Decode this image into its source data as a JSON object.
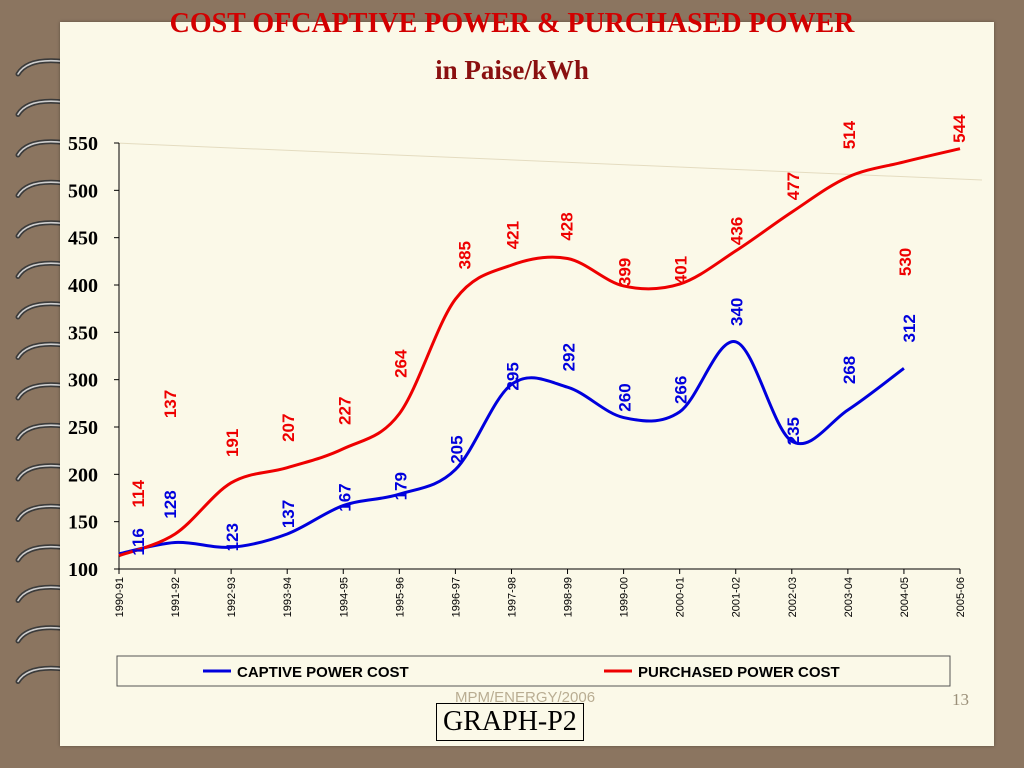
{
  "slide": {
    "title": "COST OFCAPTIVE POWER  & PURCHASED POWER",
    "subtitle": "in Paise/kWh",
    "footer": "MPM/ENERGY/2006",
    "page_number": "13",
    "graph_label": "GRAPH-P2"
  },
  "colors": {
    "captive": "#0000dd",
    "purchased": "#ee0000",
    "background": "#fbf9e8"
  },
  "chart_data": {
    "type": "line",
    "title": "COST OFCAPTIVE POWER  & PURCHASED POWER",
    "subtitle": "in Paise/kWh",
    "xlabel": "",
    "ylabel": "",
    "ylim": [
      100,
      550
    ],
    "yticks": [
      "100",
      "150",
      "200",
      "250",
      "300",
      "350",
      "400",
      "450",
      "500",
      "550"
    ],
    "categories": [
      "1990-91",
      "1991-92",
      "1992-93",
      "1993-94",
      "1994-95",
      "1995-96",
      "1996-97",
      "1997-98",
      "1998-99",
      "1999-00",
      "2000-01",
      "2001-02",
      "2002-03",
      "2003-04",
      "2004-05",
      "2005-06"
    ],
    "legend_position": "bottom",
    "grid": false,
    "series": [
      {
        "name": "CAPTIVE POWER COST",
        "color": "#0000dd",
        "values": [
          116,
          128,
          123,
          137,
          167,
          179,
          205,
          295,
          292,
          260,
          266,
          340,
          235,
          268,
          312,
          null
        ],
        "labels": [
          "116",
          "128",
          "123",
          "137",
          "167",
          "179",
          "205",
          "295",
          "292",
          "260",
          "266",
          "340",
          "235",
          "268",
          "312",
          ""
        ]
      },
      {
        "name": "PURCHASED POWER COST",
        "color": "#ee0000",
        "values": [
          114,
          137,
          191,
          207,
          227,
          264,
          385,
          421,
          428,
          399,
          401,
          436,
          477,
          514,
          530,
          544
        ],
        "labels": [
          "114",
          "137",
          "191",
          "207",
          "227",
          "264",
          "385",
          "421",
          "428",
          "399",
          "401",
          "436",
          "477",
          "514",
          "530",
          "544"
        ]
      }
    ]
  }
}
